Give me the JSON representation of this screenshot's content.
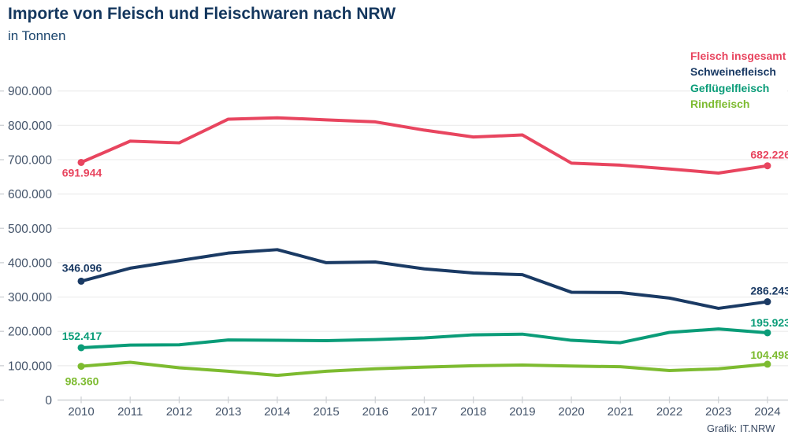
{
  "header": {
    "title": "Importe von Fleisch und Fleischwaren nach NRW",
    "subtitle": "in Tonnen"
  },
  "credit": "Grafik: IT.NRW",
  "colors": {
    "title": "#14375e",
    "tick_text": "#44546a",
    "gridline": "#ececec",
    "axis": "#cfd2d6",
    "background": "#ffffff"
  },
  "chart_data": {
    "type": "line",
    "title": "Importe von Fleisch und Fleischwaren nach NRW",
    "subtitle": "in Tonnen",
    "unit": "Tonnen",
    "x": [
      2010,
      2011,
      2012,
      2013,
      2014,
      2015,
      2016,
      2017,
      2018,
      2019,
      2020,
      2021,
      2022,
      2023,
      2024
    ],
    "xtick_labels": [
      "2010",
      "2011",
      "2012",
      "2013",
      "2014",
      "2015",
      "2016",
      "2017",
      "2018",
      "2019",
      "2020",
      "2021",
      "2022",
      "2023",
      "2024"
    ],
    "ylim": [
      0,
      900000
    ],
    "ytick_step": 100000,
    "ytick_labels": [
      "0",
      "100.000",
      "200.000",
      "300.000",
      "400.000",
      "500.000",
      "600.000",
      "700.000",
      "800.000",
      "900.000"
    ],
    "grid": true,
    "legend_position": "top-right",
    "series": [
      {
        "name": "Fleisch insgesamt",
        "color": "#e8455f",
        "values": [
          691944,
          754000,
          749000,
          818000,
          822000,
          816000,
          810000,
          786000,
          766000,
          772000,
          690000,
          684000,
          673000,
          661000,
          682226
        ],
        "first_label": "691.944",
        "last_label": "682.226"
      },
      {
        "name": "Schweinefleisch",
        "color": "#1a3a64",
        "values": [
          346096,
          384000,
          406000,
          428000,
          438000,
          400000,
          402000,
          382000,
          370000,
          365000,
          314000,
          313000,
          297000,
          267000,
          286243
        ],
        "first_label": "346.096",
        "last_label": "286.243"
      },
      {
        "name": "Geflügelfleisch",
        "color": "#0a9c78",
        "values": [
          152417,
          160000,
          161000,
          175000,
          174000,
          173000,
          176000,
          181000,
          190000,
          192000,
          174000,
          167000,
          197000,
          207000,
          195923
        ],
        "first_label": "152.417",
        "last_label": "195.923"
      },
      {
        "name": "Rindfleisch",
        "color": "#7dbb30",
        "values": [
          98360,
          110000,
          94000,
          84000,
          72000,
          84000,
          91000,
          96000,
          100000,
          102000,
          99000,
          97000,
          86000,
          91000,
          104498
        ],
        "first_label": "98.360",
        "last_label": "104.498"
      }
    ]
  }
}
